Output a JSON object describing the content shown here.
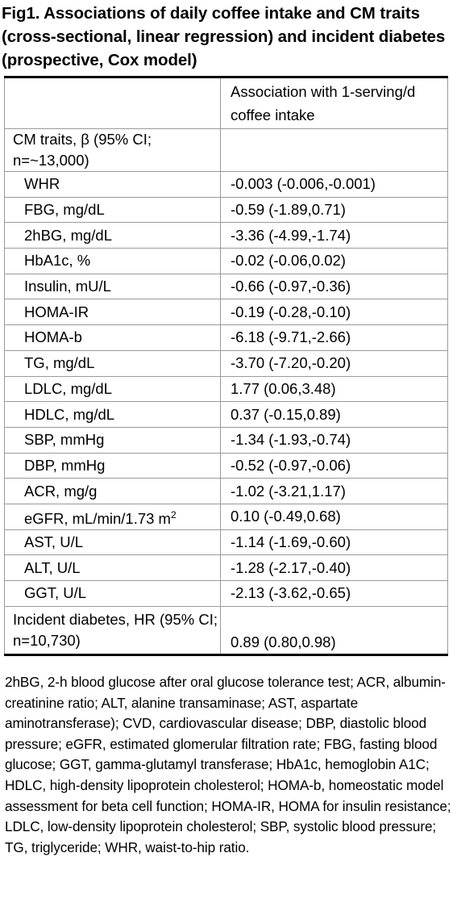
{
  "title": "Fig1. Associations of daily coffee intake and CM traits (cross-sectional, linear regression) and incident diabetes (prospective, Cox model)",
  "table": {
    "header": [
      "",
      "Association with 1-serving/d coffee intake"
    ],
    "section_cm": "CM traits, β (95% CI; n=~13,000)",
    "rows": [
      {
        "trait": "WHR",
        "value": "-0.003 (-0.006,-0.001)"
      },
      {
        "trait": "FBG, mg/dL",
        "value": "-0.59 (-1.89,0.71)"
      },
      {
        "trait": "2hBG, mg/dL",
        "value": "-3.36 (-4.99,-1.74)"
      },
      {
        "trait": "HbA1c, %",
        "value": "-0.02 (-0.06,0.02)"
      },
      {
        "trait": "Insulin, mU/L",
        "value": "-0.66 (-0.97,-0.36)"
      },
      {
        "trait": "HOMA-IR",
        "value": "-0.19 (-0.28,-0.10)"
      },
      {
        "trait": "HOMA-b",
        "value": "-6.18 (-9.71,-2.66)"
      },
      {
        "trait": "TG, mg/dL",
        "value": "-3.70 (-7.20,-0.20)"
      },
      {
        "trait": "LDLC, mg/dL",
        "value": "1.77 (0.06,3.48)"
      },
      {
        "trait": "HDLC, mg/dL",
        "value": "0.37 (-0.15,0.89)"
      },
      {
        "trait": "SBP, mmHg",
        "value": "-1.34 (-1.93,-0.74)"
      },
      {
        "trait": "DBP, mmHg",
        "value": "-0.52 (-0.97,-0.06)"
      },
      {
        "trait": "ACR, mg/g",
        "value": "-1.02 (-3.21,1.17)"
      },
      {
        "trait": "eGFR, mL/min/1.73 m",
        "trait_sup": "2",
        "value": "0.10 (-0.49,0.68)"
      },
      {
        "trait": "AST, U/L",
        "value": "-1.14 (-1.69,-0.60)"
      },
      {
        "trait": "ALT, U/L",
        "value": "-1.28 (-2.17,-0.40)"
      },
      {
        "trait": "GGT, U/L",
        "value": "-2.13 (-3.62,-0.65)"
      }
    ],
    "section_diabetes": "Incident diabetes, HR (95% CI; n=10,730)",
    "diabetes_value": "0.89 (0.80,0.98)"
  },
  "footnote": "2hBG, 2-h blood glucose after oral glucose tolerance test; ACR, albumin-creatinine ratio; ALT, alanine transaminase; AST, aspartate aminotransferase); CVD, cardiovascular disease; DBP, diastolic blood pressure; eGFR, estimated glomerular filtration rate; FBG, fasting blood glucose; GGT, gamma-glutamyl transferase; HbA1c, hemoglobin A1C; HDLC, high-density lipoprotein cholesterol; HOMA-b, homeostatic model assessment for beta cell function; HOMA-IR, HOMA for insulin resistance; LDLC, low-density lipoprotein cholesterol; SBP, systolic blood pressure; TG, triglyceride; WHR, waist-to-hip ratio."
}
